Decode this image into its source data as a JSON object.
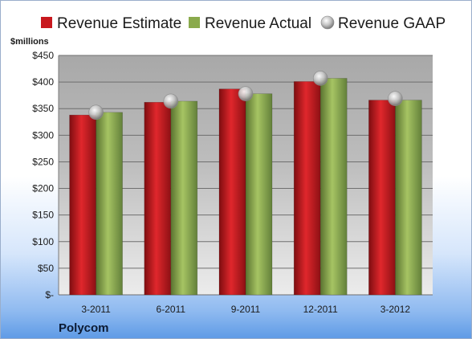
{
  "chart_data": {
    "type": "bar",
    "company": "Polycom",
    "ylabel": "$millions",
    "categories": [
      "3-2011",
      "6-2011",
      "9-2011",
      "12-2011",
      "3-2012"
    ],
    "series": [
      {
        "name": "Revenue Estimate",
        "kind": "bar",
        "color": "#c8181e",
        "values": [
          338,
          362,
          387,
          401,
          366
        ]
      },
      {
        "name": "Revenue Actual",
        "kind": "bar",
        "color": "#8aaa4c",
        "values": [
          343,
          364,
          378,
          407,
          366
        ]
      },
      {
        "name": "Revenue GAAP",
        "kind": "marker",
        "color": "#b0b0b0",
        "values": [
          343,
          364,
          378,
          407,
          369
        ]
      }
    ],
    "ylim": [
      0,
      450
    ],
    "ytick_step": 50,
    "ytick_labels": [
      "$-",
      "$50",
      "$100",
      "$150",
      "$200",
      "$250",
      "$300",
      "$350",
      "$400",
      "$450"
    ],
    "grid": true,
    "legend_position": "top"
  }
}
